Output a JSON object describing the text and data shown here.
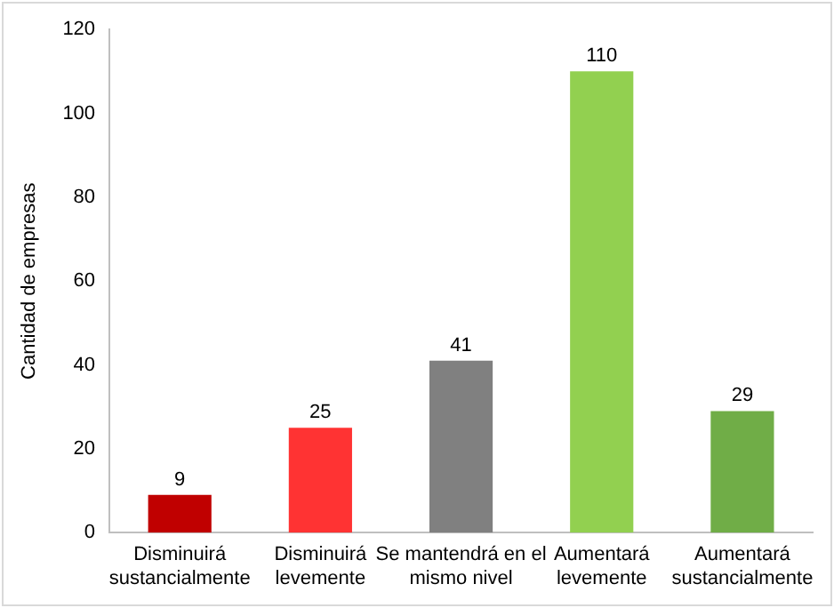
{
  "chart_data": {
    "type": "bar",
    "ylabel": "Cantidad de empresas",
    "categories": [
      "Disminuirá sustancialmente",
      "Disminuirá levemente",
      "Se mantendrá en el mismo nivel",
      "Aumentará levemente",
      "Aumentará sustancialmente"
    ],
    "values": [
      9,
      25,
      41,
      110,
      29
    ],
    "colors": [
      "#c00000",
      "#ff3333",
      "#808080",
      "#92d050",
      "#70ad47"
    ],
    "ylim": [
      0,
      120
    ],
    "yticks": [
      0,
      20,
      40,
      60,
      80,
      100,
      120
    ],
    "data_labels": true,
    "grid": false,
    "legend": false
  }
}
